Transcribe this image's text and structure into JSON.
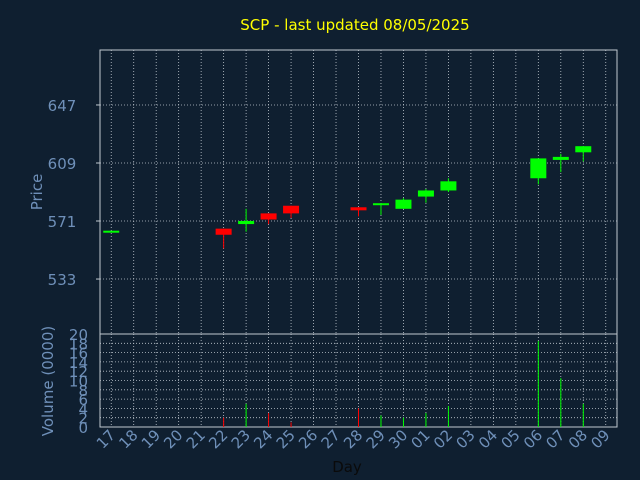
{
  "chart_data": {
    "type": "candlestick",
    "title": "SCP - last updated 08/05/2025",
    "xlabel": "Day",
    "price_axis": {
      "ylabel": "Price",
      "ticks": [
        533,
        571,
        609,
        647
      ],
      "ylim": [
        497,
        683
      ]
    },
    "volume_axis": {
      "ylabel": "Volume (0000)",
      "ticks": [
        0,
        2,
        4,
        6,
        8,
        10,
        12,
        14,
        16,
        18,
        20
      ],
      "ylim": [
        0,
        20
      ]
    },
    "grid": true,
    "categories": [
      "17",
      "18",
      "19",
      "20",
      "21",
      "22",
      "23",
      "24",
      "25",
      "26",
      "27",
      "28",
      "29",
      "30",
      "01",
      "02",
      "03",
      "04",
      "05",
      "06",
      "07",
      "08",
      "09"
    ],
    "candles": [
      {
        "day": "17",
        "open": 564,
        "high": 564,
        "low": 564,
        "close": 564,
        "volume": 0
      },
      {
        "day": "22",
        "open": 566,
        "high": 566,
        "low": 553,
        "close": 562,
        "volume": 2.0
      },
      {
        "day": "23",
        "open": 569,
        "high": 579,
        "low": 564,
        "close": 571,
        "volume": 5.0
      },
      {
        "day": "24",
        "open": 576,
        "high": 576,
        "low": 569,
        "close": 572,
        "volume": 3.0
      },
      {
        "day": "25",
        "open": 581,
        "high": 581,
        "low": 573,
        "close": 576,
        "volume": 1.0
      },
      {
        "day": "28",
        "open": 580,
        "high": 580,
        "low": 574,
        "close": 578,
        "volume": 4.0
      },
      {
        "day": "29",
        "open": 581,
        "high": 582,
        "low": 575,
        "close": 582,
        "volume": 2.5
      },
      {
        "day": "30",
        "open": 579,
        "high": 586,
        "low": 579,
        "close": 585,
        "volume": 2.0
      },
      {
        "day": "01",
        "open": 587,
        "high": 592,
        "low": 583,
        "close": 591,
        "volume": 3.0
      },
      {
        "day": "02",
        "open": 591,
        "high": 599,
        "low": 590,
        "close": 597,
        "volume": 4.5
      },
      {
        "day": "06",
        "open": 599,
        "high": 612,
        "low": 595,
        "close": 612,
        "volume": 18.5
      },
      {
        "day": "07",
        "open": 611,
        "high": 615,
        "low": 603,
        "close": 613,
        "volume": 10.5
      },
      {
        "day": "08",
        "open": 616,
        "high": 620,
        "low": 610,
        "close": 620,
        "volume": 5.0
      }
    ],
    "colors": {
      "up": "#00ff00",
      "down": "#ff0000",
      "background": "#0f1f30",
      "title": "#ffff00",
      "axis_text": "#6f90b9",
      "frame": "#c0c8d0",
      "grid": "#c0c8d0"
    }
  }
}
